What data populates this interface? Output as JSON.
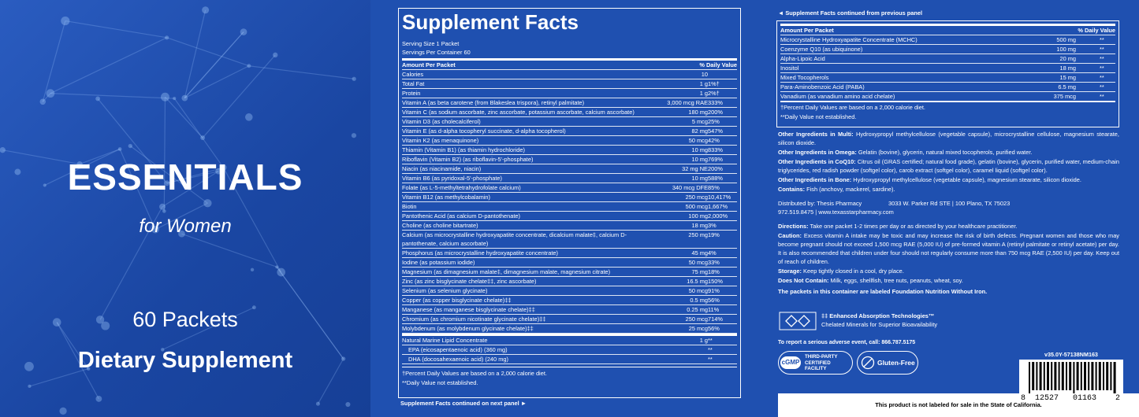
{
  "front": {
    "brand": "ESSENTIALS",
    "for": "for Women",
    "count": "60 Packets",
    "category": "Dietary Supplement"
  },
  "facts": {
    "title": "Supplement Facts",
    "serving_size": "Serving Size 1 Packet",
    "servings": "Servings Per Container 60",
    "header": {
      "amount": "Amount Per Packet",
      "dv": "% Daily Value"
    },
    "rows": [
      {
        "name": "Calories",
        "amount": "10"
      },
      {
        "name": "Total Fat",
        "amount": "1 g",
        "dv": "1%†"
      },
      {
        "name": "Protein",
        "amount": "1 g",
        "dv": "2%†"
      },
      {
        "name": "Vitamin A (as beta carotene (from Blakeslea trispora), retinyl palmitate)",
        "amount": "3,000 mcg RAE",
        "dv": "333%"
      },
      {
        "name": "Vitamin C (as sodium ascorbate, zinc ascorbate, potassium ascorbate, calcium ascorbate)",
        "amount": "180 mg",
        "dv": "200%"
      },
      {
        "name": "Vitamin D3 (as cholecalciferol)",
        "amount": "5 mcg",
        "dv": "25%"
      },
      {
        "name": "Vitamin E (as d-alpha tocopheryl succinate, d-alpha tocopherol)",
        "amount": "82 mg",
        "dv": "547%"
      },
      {
        "name": "Vitamin K2 (as menaquinone)",
        "amount": "50 mcg",
        "dv": "42%"
      },
      {
        "name": "Thiamin (Vitamin B1) (as thiamin hydrochloride)",
        "amount": "10 mg",
        "dv": "833%"
      },
      {
        "name": "Riboflavin (Vitamin B2) (as riboflavin-5'-phosphate)",
        "amount": "10 mg",
        "dv": "769%"
      },
      {
        "name": "Niacin (as niacinamide, niacin)",
        "amount": "32 mg NE",
        "dv": "200%"
      },
      {
        "name": "Vitamin B6 (as pyridoxal-5'-phosphate)",
        "amount": "10 mg",
        "dv": "588%"
      },
      {
        "name": "Folate (as L-5-methyltetrahydrofolate calcium)",
        "amount": "340 mcg DFE",
        "dv": "85%"
      },
      {
        "name": "Vitamin B12 (as methylcobalamin)",
        "amount": "250 mcg",
        "dv": "10,417%"
      },
      {
        "name": "Biotin",
        "amount": "500 mcg",
        "dv": "1,667%"
      },
      {
        "name": "Pantothenic Acid (as calcium D-pantothenate)",
        "amount": "100 mg",
        "dv": "2,000%"
      },
      {
        "name": "Choline (as choline bitartrate)",
        "amount": "18 mg",
        "dv": "3%"
      },
      {
        "name": "Calcium (as microcrystalline hydroxyapatite concentrate, dicalcium malate‡, calcium D-pantothenate, calcium ascorbate)",
        "amount": "250 mg",
        "dv": "19%"
      },
      {
        "name": "Phosphorus (as microcrystalline hydroxyapatite concentrate)",
        "amount": "45 mg",
        "dv": "4%"
      },
      {
        "name": "Iodine (as potassium iodide)",
        "amount": "50 mcg",
        "dv": "33%"
      },
      {
        "name": "Magnesium (as dimagnesium malate‡, dimagnesium malate, magnesium citrate)",
        "amount": "75 mg",
        "dv": "18%"
      },
      {
        "name": "Zinc (as zinc bisglycinate chelate‡‡, zinc ascorbate)",
        "amount": "16.5 mg",
        "dv": "150%"
      },
      {
        "name": "Selenium (as selenium glycinate)",
        "amount": "50 mcg",
        "dv": "91%"
      },
      {
        "name": "Copper (as copper bisglycinate chelate)‡‡",
        "amount": "0.5 mg",
        "dv": "56%"
      },
      {
        "name": "Manganese (as manganese bisglycinate chelate)‡‡",
        "amount": "0.25 mg",
        "dv": "11%"
      },
      {
        "name": "Chromium (as chromium nicotinate glycinate chelate)‡‡",
        "amount": "250 mcg",
        "dv": "714%"
      },
      {
        "name": "Molybdenum (as molybdenum glycinate chelate)‡‡",
        "amount": "25 mcg",
        "dv": "56%"
      }
    ],
    "lipid": [
      {
        "name": "Natural Marine Lipid Concentrate",
        "amount": "1 g",
        "dv": "**"
      },
      {
        "name": "EPA (eicosapentaenoic acid) (360 mg)",
        "dv": "**"
      },
      {
        "name": "DHA (docosahexaenoic acid) (240 mg)",
        "dv": "**"
      }
    ],
    "footnotes": [
      "†Percent Daily Values are based on a 2,000 calorie diet.",
      "**Daily Value not established."
    ],
    "continued": "Supplement Facts continued on next panel ►"
  },
  "facts_cont": {
    "heading": "◄ Supplement Facts continued from previous panel",
    "header": {
      "amount": "Amount Per Packet",
      "dv": "% Daily Value"
    },
    "rows": [
      {
        "name": "Microcrystalline Hydroxyapatite Concentrate (MCHC)",
        "amount": "500 mg",
        "dv": "**"
      },
      {
        "name": "Coenzyme Q10 (as ubiquinone)",
        "amount": "100 mg",
        "dv": "**"
      },
      {
        "name": "Alpha-Lipoic Acid",
        "amount": "20 mg",
        "dv": "**"
      },
      {
        "name": "Inositol",
        "amount": "18 mg",
        "dv": "**"
      },
      {
        "name": "Mixed Tocopherols",
        "amount": "15 mg",
        "dv": "**"
      },
      {
        "name": "Para-Aminobenzoic Acid (PABA)",
        "amount": "6.5 mg",
        "dv": "**"
      },
      {
        "name": "Vanadium (as vanadium amino acid chelate)",
        "amount": "375 mcg",
        "dv": "**"
      }
    ],
    "footnotes": [
      "†Percent Daily Values are based on a 2,000 calorie diet.",
      "**Daily Value not established."
    ]
  },
  "info": {
    "ingredients": [
      {
        "lead": "Other Ingredients in Multi:",
        "text": "Hydroxypropyl methylcellulose (vegetable capsule), microcrystalline cellulose, magnesium stearate, silicon dioxide."
      },
      {
        "lead": "Other Ingredients in Omega:",
        "text": "Gelatin (bovine), glycerin, natural mixed tocopherols, purified water."
      },
      {
        "lead": "Other Ingredients in CoQ10:",
        "text": "Citrus oil (GRAS certified; natural food grade), gelatin (bovine), glycerin, purified water, medium-chain triglycerides, red radish powder (softgel color), carob extract (softgel color), caramel liquid (softgel color)."
      },
      {
        "lead": "Other Ingredients in Bone:",
        "text": "Hydroxypropyl methylcellulose (vegetable capsule), magnesium stearate, silicon dioxide."
      },
      {
        "lead": "Contains:",
        "text": "Fish (anchovy, mackerel, sardine)."
      }
    ],
    "distributor": {
      "label": "Distributed by: Thesis Pharmacy",
      "address": "3033 W. Parker Rd STE | 100 Plano, TX 75023",
      "contact": "972.519.8475 | www.texasstarpharmacy.com"
    },
    "notes": [
      {
        "lead": "Directions:",
        "text": "Take one packet 1-2 times per day or as directed by your healthcare practitioner."
      },
      {
        "lead": "Caution:",
        "text": "Excess vitamin A intake may be toxic and may increase the risk of birth defects. Pregnant women and those who may become pregnant should not exceed 1,500 mcg RAE (5,000 IU) of pre-formed vitamin A (retinyl palmitate or retinyl acetate) per day. It is also recommended that children under four should not regularly consume more than 750 mcg RAE (2,500 IU) per day. Keep out of reach of children."
      },
      {
        "lead": "Storage:",
        "text": "Keep tightly closed in a cool, dry place."
      },
      {
        "lead": "Does Not Contain:",
        "text": "Milk, eggs, shellfish, tree nuts, peanuts, wheat, soy."
      }
    ],
    "closing": "The packets in this container are labeled Foundation Nutrition Without Iron."
  },
  "eat": {
    "title": "‡‡ Enhanced Absorption Technologies™",
    "subtitle": "Chelated Minerals for Superior Bioavailability"
  },
  "report": "To report a serious adverse event, call: 866.787.5175",
  "cgmp": {
    "badge": "cGMP",
    "text": [
      "THIRD-PARTY",
      "CERTIFIED",
      "FACILITY"
    ]
  },
  "gluten": "Gluten-Free",
  "version": "v35.0Y-57138NM163",
  "barcode": [
    "8",
    "12527",
    "01163",
    "2"
  ],
  "california": "This product is not labeled for sale in the State of California."
}
